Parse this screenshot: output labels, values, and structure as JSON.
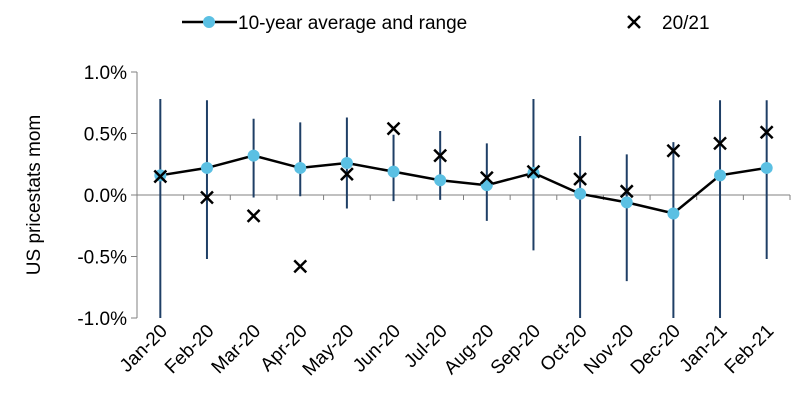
{
  "chart_data": {
    "type": "line",
    "categories": [
      "Jan-20",
      "Feb-20",
      "Mar-20",
      "Apr-20",
      "May-20",
      "Jun-20",
      "Jul-20",
      "Aug-20",
      "Sep-20",
      "Oct-20",
      "Nov-20",
      "Dec-20",
      "Jan-21",
      "Feb-21"
    ],
    "series": [
      {
        "name": "10-year average and range",
        "values": [
          0.16,
          0.22,
          0.32,
          0.22,
          0.26,
          0.19,
          0.12,
          0.08,
          0.18,
          0.01,
          -0.06,
          -0.15,
          0.16,
          0.22
        ],
        "range_high": [
          0.78,
          0.77,
          0.62,
          0.59,
          0.63,
          0.49,
          0.52,
          0.42,
          0.78,
          0.48,
          0.33,
          0.43,
          0.77,
          0.77
        ],
        "range_low": [
          -1.03,
          -0.52,
          -0.02,
          -0.01,
          -0.11,
          -0.05,
          -0.04,
          -0.21,
          -0.45,
          -1.03,
          -0.7,
          -1.03,
          -1.03,
          -0.52
        ]
      },
      {
        "name": "20/21",
        "values": [
          0.15,
          -0.02,
          -0.17,
          -0.58,
          0.17,
          0.54,
          0.32,
          0.14,
          0.19,
          0.13,
          0.03,
          0.36,
          0.42,
          0.51
        ]
      }
    ],
    "ylabel": "US pricestats mom",
    "xlabel": "",
    "ylim": [
      -1.0,
      1.0
    ],
    "y_ticks": [
      "1.0%",
      "0.5%",
      "0.0%",
      "-0.5%",
      "-1.0%"
    ],
    "grid": false,
    "legend_position": "top",
    "colors": {
      "line": "#000000",
      "marker": "#5bc0e3",
      "range": "#1f3f66",
      "cross": "#000000"
    }
  }
}
